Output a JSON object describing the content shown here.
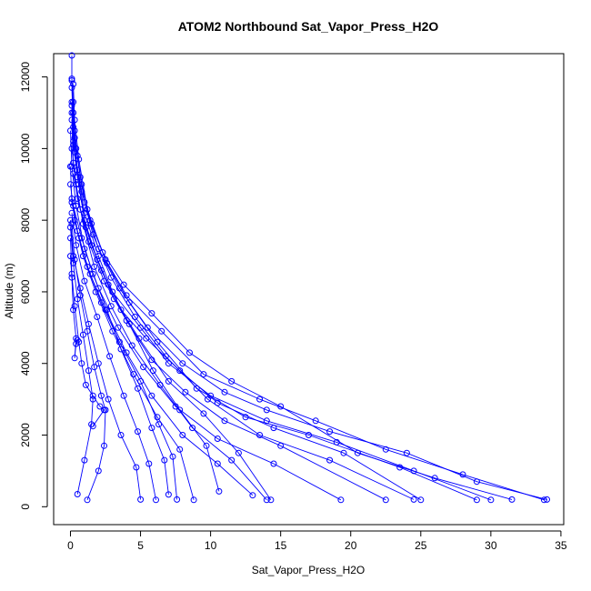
{
  "chart_data": {
    "type": "line",
    "title": "ATOM2 Northbound Sat_Vapor_Press_H2O",
    "xlabel": "Sat_Vapor_Press_H2O",
    "ylabel": "Altitude (m)",
    "xlim": [
      -1.2,
      35.2
    ],
    "ylim": [
      -500,
      12650
    ],
    "xticks": [
      0,
      5,
      10,
      15,
      20,
      25,
      30,
      35
    ],
    "yticks": [
      0,
      2000,
      4000,
      6000,
      8000,
      10000,
      12000
    ],
    "grid": false,
    "legend": "none",
    "series_color": "#0000ff",
    "series": [
      {
        "points": [
          [
            0.1,
            12600
          ],
          [
            0.1,
            11950
          ],
          [
            0.2,
            11300
          ],
          [
            0.3,
            10500
          ],
          [
            0.5,
            9800
          ],
          [
            1.0,
            8500
          ],
          [
            2.0,
            7200
          ],
          [
            3.5,
            6100
          ],
          [
            5.5,
            5000
          ],
          [
            8.0,
            4000
          ],
          [
            11.0,
            3200
          ],
          [
            14.0,
            2700
          ],
          [
            18.5,
            2100
          ],
          [
            24.0,
            1500
          ],
          [
            29.0,
            700
          ],
          [
            34.0,
            200
          ]
        ]
      },
      {
        "points": [
          [
            0.1,
            11900
          ],
          [
            0.2,
            11000
          ],
          [
            0.4,
            10000
          ],
          [
            0.8,
            9000
          ],
          [
            1.5,
            7900
          ],
          [
            2.5,
            6900
          ],
          [
            4.0,
            5900
          ],
          [
            6.5,
            4900
          ],
          [
            9.5,
            3700
          ],
          [
            13.5,
            3000
          ],
          [
            17.5,
            2400
          ],
          [
            22.5,
            1600
          ],
          [
            28.0,
            900
          ],
          [
            33.8,
            190
          ]
        ]
      },
      {
        "points": [
          [
            0.2,
            11800
          ],
          [
            0.3,
            10800
          ],
          [
            0.6,
            9700
          ],
          [
            1.2,
            8300
          ],
          [
            2.3,
            7100
          ],
          [
            3.8,
            6200
          ],
          [
            5.8,
            5400
          ],
          [
            8.5,
            4300
          ],
          [
            11.5,
            3500
          ],
          [
            15.0,
            2800
          ],
          [
            20.5,
            1500
          ],
          [
            26.0,
            800
          ],
          [
            31.5,
            200
          ]
        ]
      },
      {
        "points": [
          [
            0.1,
            11700
          ],
          [
            0.2,
            10600
          ],
          [
            0.5,
            9400
          ],
          [
            1.0,
            8200
          ],
          [
            2.0,
            7000
          ],
          [
            3.0,
            6000
          ],
          [
            5.0,
            5000
          ],
          [
            7.0,
            4000
          ],
          [
            10.0,
            3100
          ],
          [
            14.0,
            2400
          ],
          [
            19.0,
            1800
          ],
          [
            24.5,
            1000
          ],
          [
            30.0,
            190
          ]
        ]
      },
      {
        "points": [
          [
            0.1,
            11300
          ],
          [
            0.3,
            10300
          ],
          [
            0.7,
            9200
          ],
          [
            1.4,
            8000
          ],
          [
            2.6,
            6800
          ],
          [
            4.2,
            5700
          ],
          [
            6.2,
            4600
          ],
          [
            9.0,
            3300
          ],
          [
            12.5,
            2500
          ],
          [
            17.0,
            2000
          ],
          [
            23.5,
            1100
          ],
          [
            29.0,
            190
          ]
        ]
      },
      {
        "points": [
          [
            0.1,
            11200
          ],
          [
            0.2,
            10100
          ],
          [
            0.6,
            9000
          ],
          [
            1.1,
            7800
          ],
          [
            2.2,
            6600
          ],
          [
            3.6,
            5500
          ],
          [
            5.4,
            4700
          ],
          [
            7.8,
            3800
          ],
          [
            10.5,
            2900
          ],
          [
            14.5,
            2200
          ],
          [
            19.5,
            1500
          ],
          [
            25.0,
            190
          ]
        ]
      },
      {
        "points": [
          [
            0.1,
            11000
          ],
          [
            0.3,
            9900
          ],
          [
            0.8,
            8800
          ],
          [
            1.6,
            7600
          ],
          [
            2.9,
            6400
          ],
          [
            4.6,
            5300
          ],
          [
            6.8,
            4200
          ],
          [
            9.8,
            3000
          ],
          [
            13.5,
            2000
          ],
          [
            18.5,
            1300
          ],
          [
            24.5,
            200
          ]
        ]
      },
      {
        "points": [
          [
            0.1,
            10800
          ],
          [
            0.2,
            9600
          ],
          [
            0.5,
            8600
          ],
          [
            1.3,
            7400
          ],
          [
            2.4,
            6300
          ],
          [
            4.0,
            5200
          ],
          [
            5.8,
            4100
          ],
          [
            8.2,
            3200
          ],
          [
            11.0,
            2400
          ],
          [
            15.0,
            1700
          ],
          [
            22.5,
            190
          ]
        ]
      },
      {
        "points": [
          [
            0.0,
            10500
          ],
          [
            0.1,
            9500
          ],
          [
            0.4,
            8400
          ],
          [
            1.0,
            7200
          ],
          [
            2.0,
            6100
          ],
          [
            3.4,
            5000
          ],
          [
            5.2,
            3900
          ],
          [
            7.5,
            2800
          ],
          [
            10.5,
            1900
          ],
          [
            14.5,
            1200
          ],
          [
            19.3,
            190
          ]
        ]
      },
      {
        "points": [
          [
            0.2,
            10200
          ],
          [
            0.5,
            9200
          ],
          [
            1.0,
            8000
          ],
          [
            1.9,
            6900
          ],
          [
            3.1,
            5800
          ],
          [
            4.9,
            4700
          ],
          [
            7.0,
            3500
          ],
          [
            9.5,
            2600
          ],
          [
            12.0,
            1500
          ],
          [
            14.3,
            190
          ]
        ]
      },
      {
        "points": [
          [
            0.1,
            10000
          ],
          [
            0.4,
            9000
          ],
          [
            0.9,
            7900
          ],
          [
            1.7,
            6700
          ],
          [
            2.9,
            5600
          ],
          [
            4.4,
            4500
          ],
          [
            6.4,
            3400
          ],
          [
            8.7,
            2200
          ],
          [
            11.5,
            1300
          ],
          [
            14.0,
            190
          ]
        ]
      },
      {
        "points": [
          [
            0.0,
            9500
          ],
          [
            0.1,
            8500
          ],
          [
            0.6,
            7500
          ],
          [
            1.4,
            6500
          ],
          [
            2.5,
            5500
          ],
          [
            4.0,
            4300
          ],
          [
            5.8,
            3100
          ],
          [
            8.0,
            2000
          ],
          [
            10.5,
            1200
          ],
          [
            13.0,
            320
          ]
        ]
      },
      {
        "points": [
          [
            0.2,
            9300
          ],
          [
            0.7,
            8300
          ],
          [
            1.5,
            7300
          ],
          [
            2.7,
            6200
          ],
          [
            4.2,
            5100
          ],
          [
            5.9,
            3800
          ],
          [
            7.8,
            2700
          ],
          [
            9.7,
            1700
          ],
          [
            10.6,
            430
          ]
        ]
      },
      {
        "points": [
          [
            0.0,
            9000
          ],
          [
            0.3,
            8000
          ],
          [
            0.9,
            7000
          ],
          [
            1.8,
            6000
          ],
          [
            3.0,
            4900
          ],
          [
            4.5,
            3700
          ],
          [
            6.2,
            2500
          ],
          [
            7.8,
            1600
          ],
          [
            8.8,
            190
          ]
        ]
      },
      {
        "points": [
          [
            0.1,
            8600
          ],
          [
            0.5,
            7700
          ],
          [
            1.2,
            6700
          ],
          [
            2.2,
            5700
          ],
          [
            3.5,
            4600
          ],
          [
            5.0,
            3500
          ],
          [
            6.3,
            2300
          ],
          [
            7.3,
            1400
          ],
          [
            7.6,
            200
          ]
        ]
      },
      {
        "points": [
          [
            0.2,
            8400
          ],
          [
            0.8,
            7500
          ],
          [
            1.6,
            6500
          ],
          [
            2.6,
            5500
          ],
          [
            3.6,
            4400
          ],
          [
            4.8,
            3300
          ],
          [
            5.8,
            2200
          ],
          [
            6.7,
            1300
          ],
          [
            7.0,
            340
          ]
        ]
      },
      {
        "points": [
          [
            0.1,
            8200
          ],
          [
            0.4,
            7300
          ],
          [
            1.0,
            6300
          ],
          [
            1.9,
            5300
          ],
          [
            2.8,
            4200
          ],
          [
            3.8,
            3100
          ],
          [
            4.8,
            2100
          ],
          [
            5.6,
            1200
          ],
          [
            6.1,
            190
          ]
        ]
      },
      {
        "points": [
          [
            0.0,
            8000
          ],
          [
            0.2,
            7000
          ],
          [
            0.7,
            6100
          ],
          [
            1.3,
            5100
          ],
          [
            2.0,
            4000
          ],
          [
            2.7,
            3000
          ],
          [
            3.6,
            2000
          ],
          [
            4.7,
            1100
          ],
          [
            5.0,
            200
          ]
        ]
      },
      {
        "points": [
          [
            0.1,
            7900
          ],
          [
            0.3,
            6900
          ],
          [
            0.7,
            5900
          ],
          [
            1.2,
            4900
          ],
          [
            1.7,
            3900
          ],
          [
            2.2,
            3100
          ],
          [
            2.5,
            2700
          ],
          [
            2.4,
            1700
          ],
          [
            2.0,
            1000
          ],
          [
            1.2,
            190
          ]
        ]
      },
      {
        "points": [
          [
            0.0,
            7800
          ],
          [
            0.2,
            6800
          ],
          [
            0.5,
            5800
          ],
          [
            0.9,
            4800
          ],
          [
            1.3,
            3800
          ],
          [
            1.6,
            3000
          ],
          [
            1.5,
            2300
          ],
          [
            1.0,
            1300
          ],
          [
            0.5,
            350
          ]
        ]
      },
      {
        "points": [
          [
            0.0,
            7500
          ],
          [
            0.1,
            6500
          ],
          [
            0.3,
            5600
          ],
          [
            0.6,
            4600
          ],
          [
            0.8,
            4000
          ],
          [
            1.1,
            3400
          ],
          [
            1.6,
            3100
          ],
          [
            2.1,
            2800
          ],
          [
            2.4,
            2700
          ],
          [
            1.6,
            2250
          ]
        ]
      },
      {
        "points": [
          [
            0.0,
            7000
          ],
          [
            0.1,
            6400
          ],
          [
            0.2,
            5500
          ],
          [
            0.4,
            4700
          ],
          [
            0.3,
            4150
          ],
          [
            0.4,
            4550
          ],
          [
            0.5,
            4650
          ]
        ]
      }
    ]
  }
}
